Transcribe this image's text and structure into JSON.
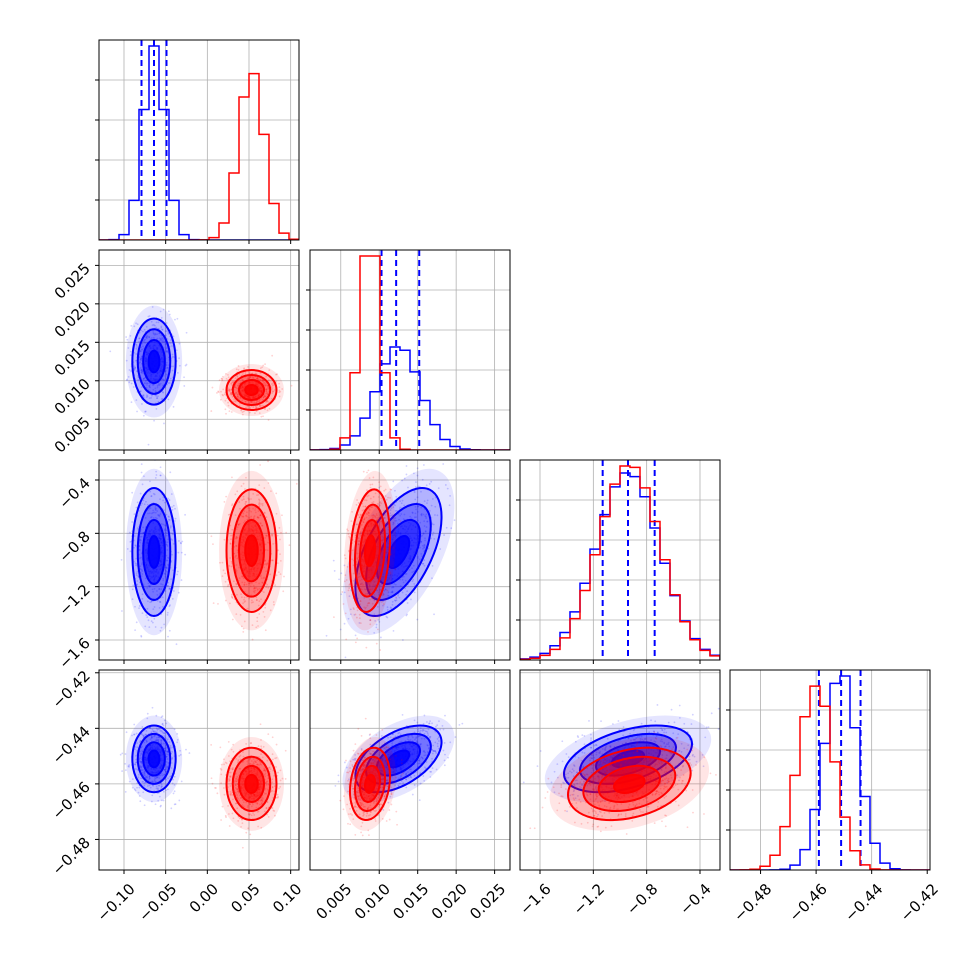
{
  "chart_data": {
    "type": "corner",
    "title": "",
    "colors": {
      "blue": "#0000ff",
      "red": "#ff0000"
    },
    "grid": true,
    "parameters": [
      {
        "index": 0,
        "range": [
          -0.13,
          0.11
        ],
        "ticks": [
          -0.1,
          -0.05,
          0.0,
          0.05,
          0.1
        ],
        "tick_labels": [
          "−0.10",
          "−0.05",
          "0.00",
          "0.05",
          "0.10"
        ]
      },
      {
        "index": 1,
        "range": [
          0.001,
          0.027
        ],
        "ticks": [
          0.005,
          0.01,
          0.015,
          0.02,
          0.025
        ],
        "tick_labels": [
          "0.005",
          "0.010",
          "0.015",
          "0.020",
          "0.025"
        ]
      },
      {
        "index": 2,
        "range": [
          -1.75,
          -0.25
        ],
        "ticks": [
          -1.6,
          -1.2,
          -0.8,
          -0.4
        ],
        "tick_labels": [
          "−1.6",
          "−1.2",
          "−0.8",
          "−0.4"
        ]
      },
      {
        "index": 3,
        "range": [
          -0.491,
          -0.419
        ],
        "ticks": [
          -0.48,
          -0.46,
          -0.44,
          -0.42
        ],
        "tick_labels": [
          "−0.48",
          "−0.46",
          "−0.44",
          "−0.42"
        ]
      }
    ],
    "series": [
      {
        "color": "blue",
        "mean": [
          -0.064,
          0.0125,
          -0.94,
          -0.451
        ],
        "sd": [
          0.013,
          0.0028,
          0.24,
          0.006
        ],
        "correlations": {
          "0-1": 0,
          "0-2": 0,
          "0-3": 0,
          "1-2": 0.55,
          "1-3": 0.5,
          "2-3": 0.45
        },
        "quantiles": [
          [
            -0.079,
            -0.064,
            -0.049
          ],
          [
            0.0103,
            0.0122,
            0.0152
          ],
          [
            -1.13,
            -0.94,
            -0.74
          ],
          [
            -0.459,
            -0.451,
            -0.444
          ]
        ]
      },
      {
        "color": "red",
        "mean": [
          0.053,
          0.0088,
          -0.93,
          -0.46
        ],
        "sd": [
          0.015,
          0.0013,
          0.23,
          0.0065
        ],
        "correlations": {
          "0-1": 0,
          "0-2": 0,
          "0-3": 0,
          "1-2": 0.2,
          "1-3": 0.2,
          "2-3": 0.3
        }
      }
    ]
  }
}
